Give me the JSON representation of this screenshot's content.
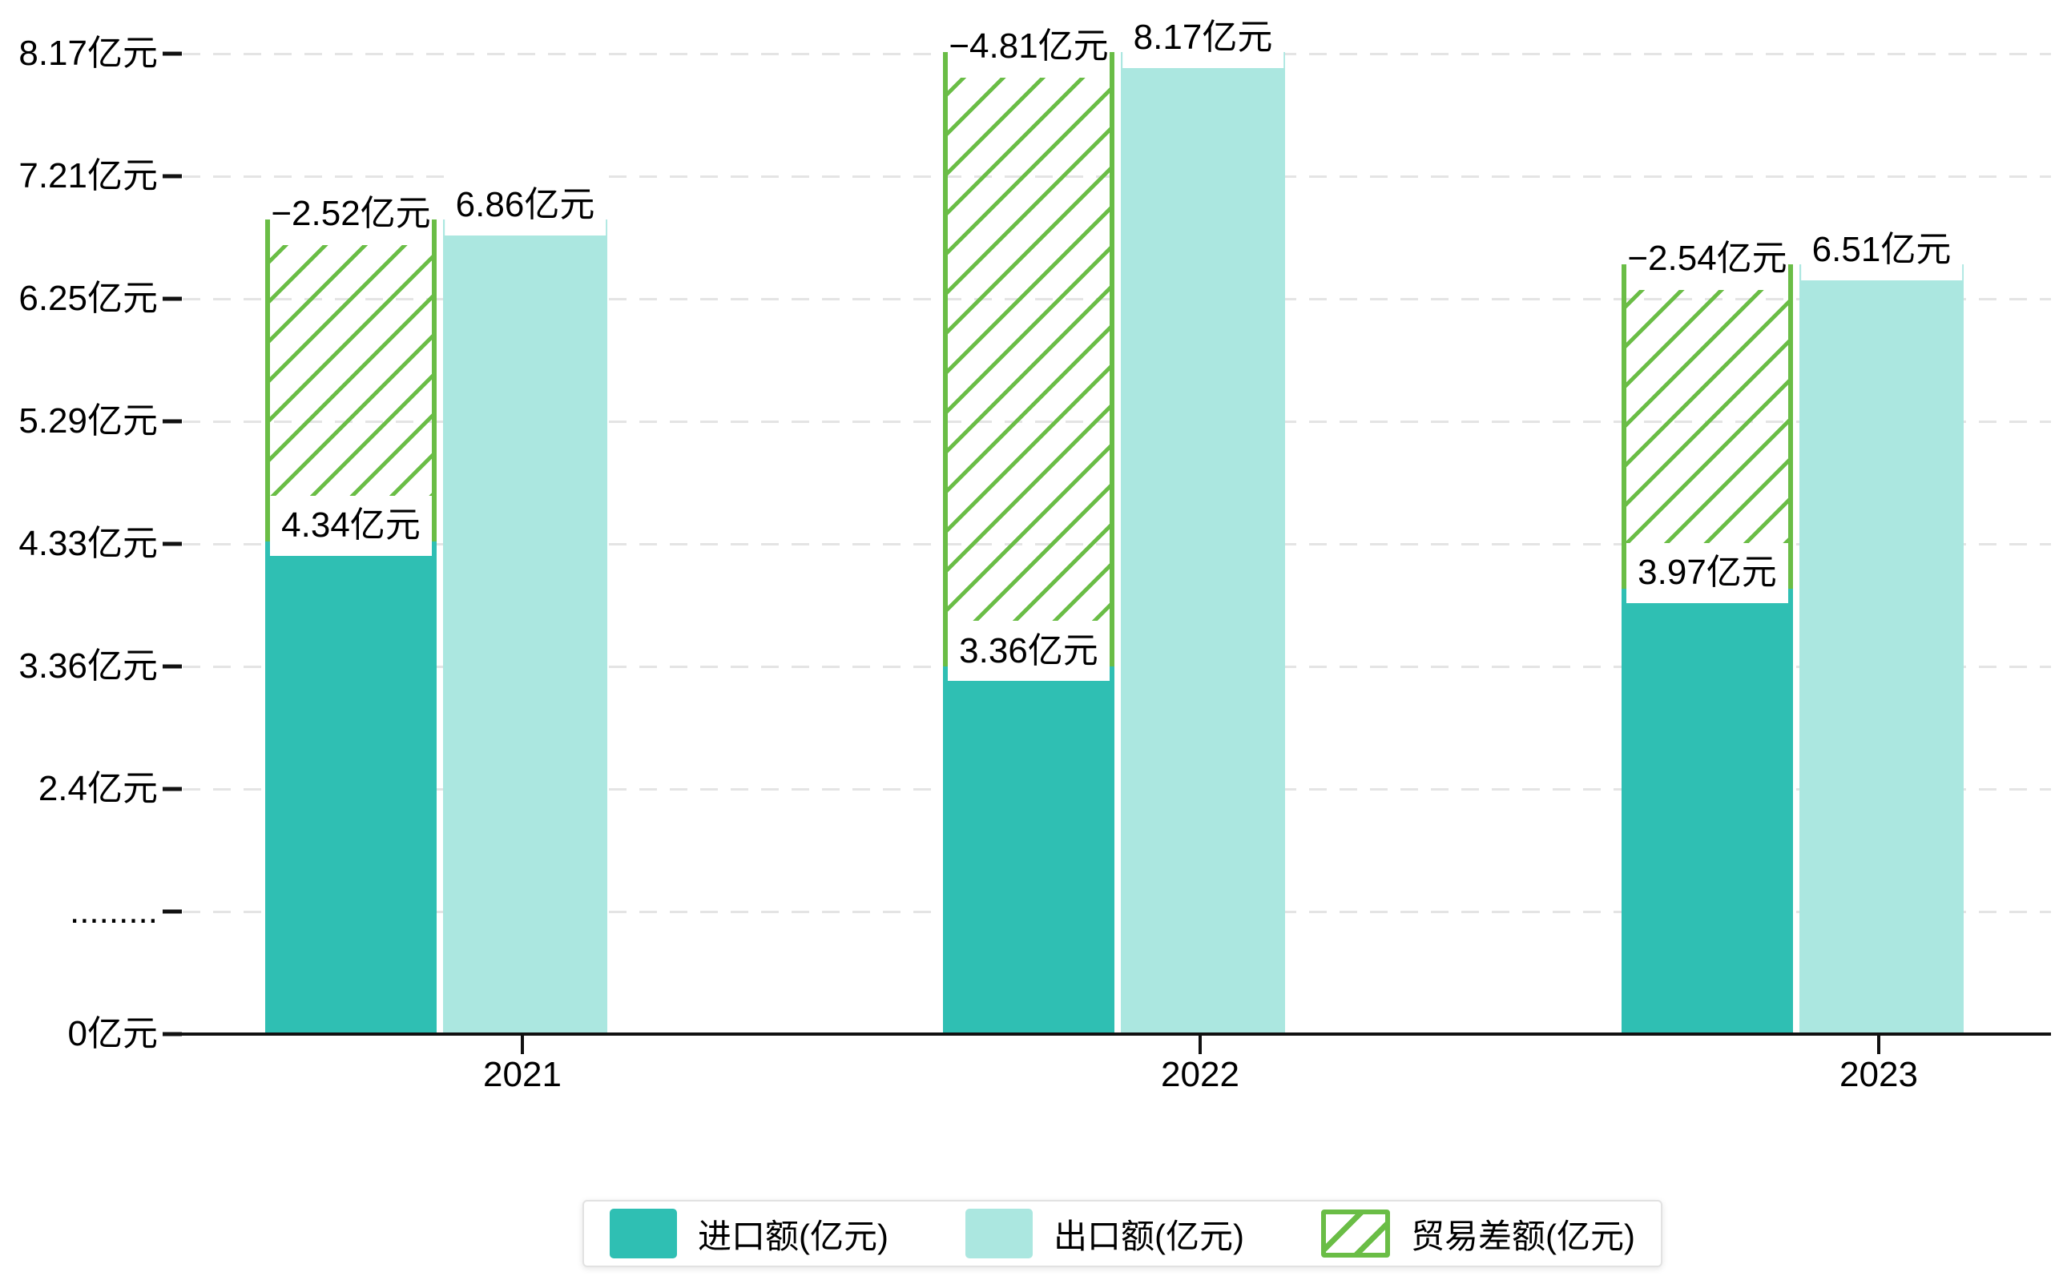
{
  "colors": {
    "import_bar": "#2FBFB3",
    "export_bar": "#ABE7E0",
    "balance_hatch": "#6ABD46",
    "grid_line": "#e4e4e4",
    "axis_line": "#111111",
    "text": "#000000",
    "legend_border": "#e2e2e2"
  },
  "chart_data": {
    "type": "bar",
    "title": "",
    "categories": [
      "2021",
      "2022",
      "2023"
    ],
    "series": [
      {
        "name": "进口额(亿元)",
        "values": [
          4.34,
          3.36,
          3.97
        ],
        "point_labels": [
          "4.34亿元",
          "3.36亿元",
          "3.97亿元"
        ],
        "color": "#2FBFB3",
        "style": "solid"
      },
      {
        "name": "出口额(亿元)",
        "values": [
          6.86,
          8.17,
          6.51
        ],
        "point_labels": [
          "6.86亿元",
          "8.17亿元",
          "6.51亿元"
        ],
        "color": "#ABE7E0",
        "style": "solid"
      },
      {
        "name": "贸易差额(亿元)",
        "values": [
          -2.52,
          -4.81,
          -2.54
        ],
        "point_labels": [
          "−2.52亿元",
          "−4.81亿元",
          "−2.54亿元"
        ],
        "color": "#6ABD46",
        "style": "hatched",
        "note": "drawn as hatched segment stacked on top of import bar, spanning from import value up to export value"
      }
    ],
    "y_axis": {
      "unit": "亿元",
      "broken_axis": true,
      "ticks": [
        {
          "label": "8.17亿元",
          "value": 8.17
        },
        {
          "label": "7.21亿元",
          "value": 7.21
        },
        {
          "label": "6.25亿元",
          "value": 6.25
        },
        {
          "label": "5.29亿元",
          "value": 5.29
        },
        {
          "label": "4.33亿元",
          "value": 4.33
        },
        {
          "label": "3.36亿元",
          "value": 3.36
        },
        {
          "label": "2.4亿元",
          "value": 2.4
        },
        {
          "label": ".........",
          "value": null
        },
        {
          "label": "0亿元",
          "value": 0
        }
      ]
    },
    "ylim": [
      0,
      8.65
    ],
    "grid": true,
    "legend_position": "bottom"
  },
  "legend": {
    "items": [
      {
        "label": "进口额(亿元)"
      },
      {
        "label": "出口额(亿元)"
      },
      {
        "label": "贸易差额(亿元)"
      }
    ]
  }
}
